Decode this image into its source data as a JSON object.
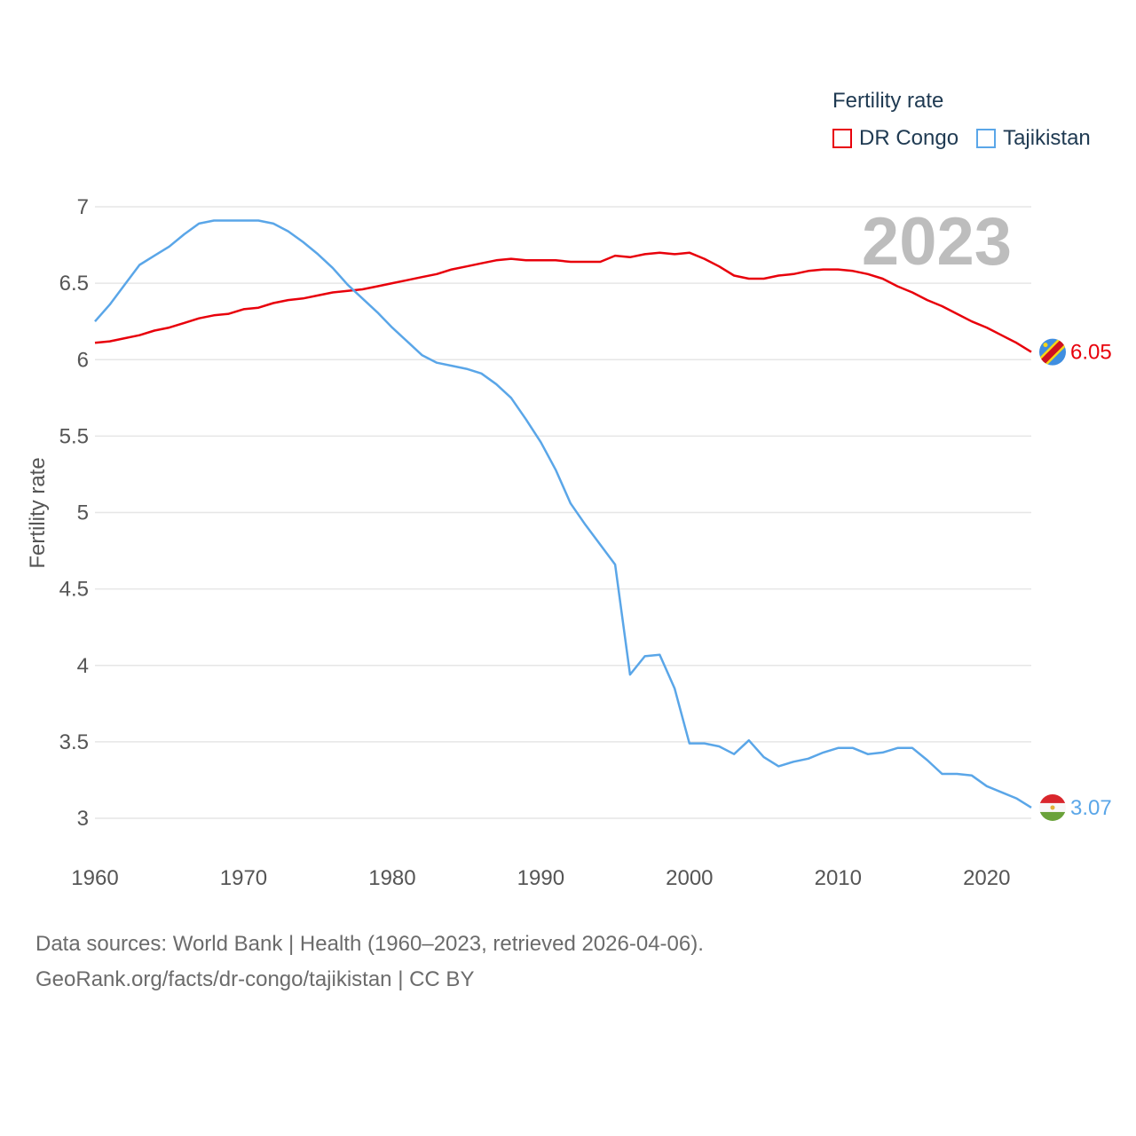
{
  "legend": {
    "title": "Fertility rate",
    "items": [
      {
        "label": "DR Congo",
        "color": "#e8000b"
      },
      {
        "label": "Tajikistan",
        "color": "#5aa6e8"
      }
    ]
  },
  "year_label": "2023",
  "footer": {
    "line1": "Data sources: World Bank | Health (1960–2023, retrieved 2026-04-06).",
    "line2": "GeoRank.org/facts/dr-congo/tajikistan | CC BY"
  },
  "chart_data": {
    "type": "line",
    "title": "Fertility rate",
    "xlabel": "",
    "ylabel": "Fertility rate",
    "xlim": [
      1960,
      2023
    ],
    "ylim": [
      3,
      7
    ],
    "x_ticks": [
      1960,
      1970,
      1980,
      1990,
      2000,
      2010,
      2020
    ],
    "y_ticks": [
      3,
      3.5,
      4,
      4.5,
      5,
      5.5,
      6,
      6.5,
      7
    ],
    "y_tick_labels": [
      "3",
      "3.5",
      "4",
      "4.5",
      "5",
      "5.5",
      "6",
      "6.5",
      "7"
    ],
    "grid": true,
    "legend_position": "top-right",
    "x": [
      1960,
      1961,
      1962,
      1963,
      1964,
      1965,
      1966,
      1967,
      1968,
      1969,
      1970,
      1971,
      1972,
      1973,
      1974,
      1975,
      1976,
      1977,
      1978,
      1979,
      1980,
      1981,
      1982,
      1983,
      1984,
      1985,
      1986,
      1987,
      1988,
      1989,
      1990,
      1991,
      1992,
      1993,
      1994,
      1995,
      1996,
      1997,
      1998,
      1999,
      2000,
      2001,
      2002,
      2003,
      2004,
      2005,
      2006,
      2007,
      2008,
      2009,
      2010,
      2011,
      2012,
      2013,
      2014,
      2015,
      2016,
      2017,
      2018,
      2019,
      2020,
      2021,
      2022,
      2023
    ],
    "series": [
      {
        "name": "DR Congo",
        "color": "#e8000b",
        "end_label": "6.05",
        "values": [
          6.11,
          6.12,
          6.14,
          6.16,
          6.19,
          6.21,
          6.24,
          6.27,
          6.29,
          6.3,
          6.33,
          6.34,
          6.37,
          6.39,
          6.4,
          6.42,
          6.44,
          6.45,
          6.46,
          6.48,
          6.5,
          6.52,
          6.54,
          6.56,
          6.59,
          6.61,
          6.63,
          6.65,
          6.66,
          6.65,
          6.65,
          6.65,
          6.64,
          6.64,
          6.64,
          6.68,
          6.67,
          6.69,
          6.7,
          6.69,
          6.7,
          6.66,
          6.61,
          6.55,
          6.53,
          6.53,
          6.55,
          6.56,
          6.58,
          6.59,
          6.59,
          6.58,
          6.56,
          6.53,
          6.48,
          6.44,
          6.39,
          6.35,
          6.3,
          6.25,
          6.21,
          6.16,
          6.11,
          6.05
        ]
      },
      {
        "name": "Tajikistan",
        "color": "#5aa6e8",
        "end_label": "3.07",
        "values": [
          6.25,
          6.36,
          6.49,
          6.62,
          6.68,
          6.74,
          6.82,
          6.89,
          6.91,
          6.91,
          6.91,
          6.91,
          6.89,
          6.84,
          6.77,
          6.69,
          6.6,
          6.49,
          6.4,
          6.31,
          6.21,
          6.12,
          6.03,
          5.98,
          5.96,
          5.94,
          5.91,
          5.84,
          5.75,
          5.61,
          5.46,
          5.28,
          5.06,
          4.92,
          4.79,
          4.66,
          3.94,
          4.06,
          4.07,
          3.85,
          3.49,
          3.49,
          3.47,
          3.42,
          3.51,
          3.4,
          3.34,
          3.37,
          3.39,
          3.43,
          3.46,
          3.46,
          3.42,
          3.43,
          3.46,
          3.46,
          3.38,
          3.29,
          3.29,
          3.28,
          3.21,
          3.17,
          3.13,
          3.07
        ]
      }
    ]
  }
}
